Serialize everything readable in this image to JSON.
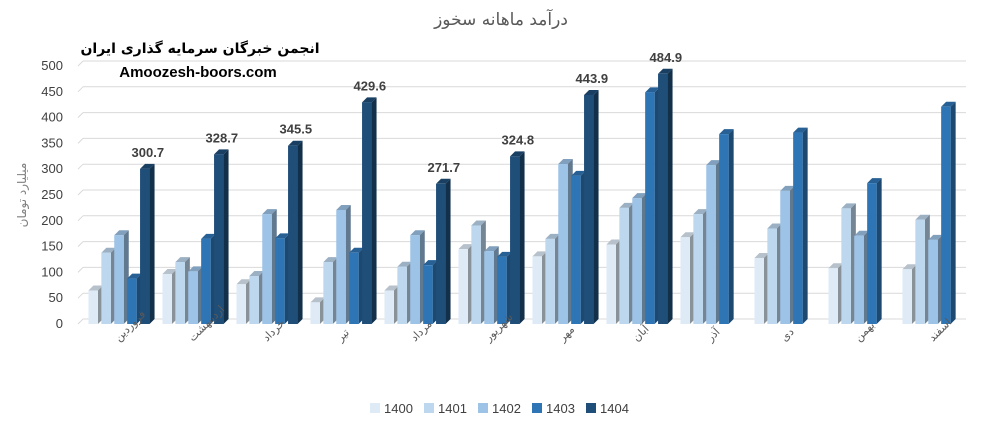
{
  "watermark": {
    "line1": "انجمن خبرگان سرمایه گذاری ایران",
    "line2": "Amoozesh-boors.com"
  },
  "chart_data": {
    "type": "bar",
    "title": "درآمد ماهانه سخوز",
    "ylabel": "میلیارد تومان",
    "xlabel": "",
    "ylim": [
      0,
      500
    ],
    "yticks": [
      0,
      50,
      100,
      150,
      200,
      250,
      300,
      350,
      400,
      450,
      500
    ],
    "grid": true,
    "legend_position": "bottom",
    "categories": [
      "فروردین",
      "اردیبهشت",
      "خرداد",
      "تیر",
      "مرداد",
      "شهریور",
      "مهر",
      "آبان",
      "آذر",
      "دی",
      "بهمن",
      "اسفند"
    ],
    "series": [
      {
        "name": "1400",
        "color": "#deebf7",
        "values": [
          65,
          97,
          77,
          42,
          65,
          145,
          131,
          154,
          168,
          128,
          108,
          106
        ]
      },
      {
        "name": "1401",
        "color": "#bdd7ee",
        "values": [
          138,
          120,
          93,
          120,
          111,
          191,
          165,
          225,
          213,
          185,
          224,
          202
        ]
      },
      {
        "name": "1402",
        "color": "#9dc3e6",
        "values": [
          172,
          102,
          213,
          221,
          172,
          141,
          310,
          244,
          308,
          258,
          171,
          163
        ]
      },
      {
        "name": "1403",
        "color": "#2e75b6",
        "values": [
          88,
          165,
          166,
          138,
          114,
          130,
          287,
          449,
          368,
          371,
          273,
          421
        ]
      },
      {
        "name": "1404",
        "color": "#1f4e79",
        "values": [
          300.7,
          328.7,
          345.5,
          429.6,
          271.7,
          324.8,
          443.9,
          484.9,
          null,
          null,
          null,
          null
        ]
      }
    ],
    "data_labels": [
      "300.7",
      "328.7",
      "345.5",
      "429.6",
      "271.7",
      "324.8",
      "443.9",
      "484.9"
    ]
  }
}
